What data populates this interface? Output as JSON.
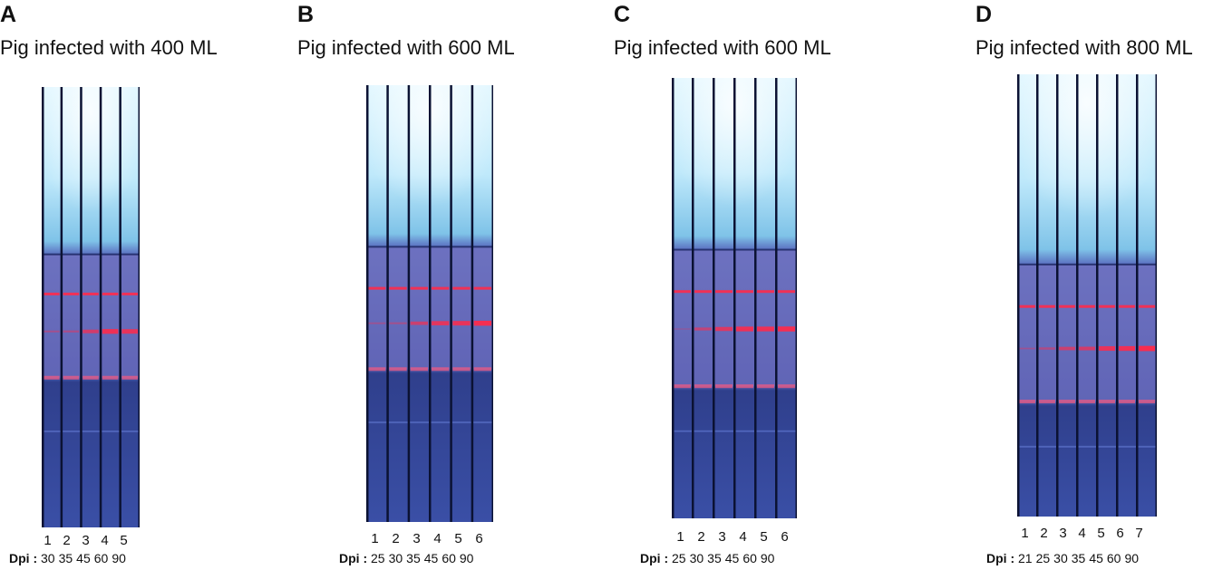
{
  "panels": [
    {
      "letter": "A",
      "title": "Pig infected with 400 ML",
      "lanes": [
        "1",
        "2",
        "3",
        "4",
        "5"
      ],
      "dpi_label": "Dpi :",
      "dpi": [
        "30",
        "35",
        "45",
        "60",
        "90"
      ],
      "band_intensity": [
        0.2,
        0.25,
        0.6,
        0.85,
        0.8
      ]
    },
    {
      "letter": "B",
      "title": "Pig infected with 600 ML",
      "lanes": [
        "1",
        "2",
        "3",
        "4",
        "5",
        "6"
      ],
      "dpi_label": "Dpi :",
      "dpi": [
        "25",
        "30",
        "35",
        "45",
        "60",
        "90"
      ],
      "band_intensity": [
        0.15,
        0.2,
        0.55,
        0.75,
        0.8,
        0.9
      ]
    },
    {
      "letter": "C",
      "title": "Pig infected with 600 ML",
      "lanes": [
        "1",
        "2",
        "3",
        "4",
        "5",
        "6"
      ],
      "dpi_label": "Dpi :",
      "dpi": [
        "25",
        "30",
        "35",
        "45",
        "60",
        "90"
      ],
      "band_intensity": [
        0.05,
        0.45,
        0.7,
        0.85,
        0.85,
        0.9
      ]
    },
    {
      "letter": "D",
      "title": "Pig infected with 800 ML",
      "lanes": [
        "1",
        "2",
        "3",
        "4",
        "5",
        "6",
        "7"
      ],
      "dpi_label": "Dpi :",
      "dpi": [
        "21",
        "25",
        "30",
        "35",
        "45",
        "60",
        "90"
      ],
      "band_intensity": [
        0.15,
        0.3,
        0.55,
        0.6,
        0.8,
        0.85,
        0.95
      ]
    }
  ],
  "colors": {
    "background_top": "#cfefff",
    "strip_blue": "#3a57b4",
    "test_band": "#ff2a4a",
    "divider": "#0b1233"
  }
}
